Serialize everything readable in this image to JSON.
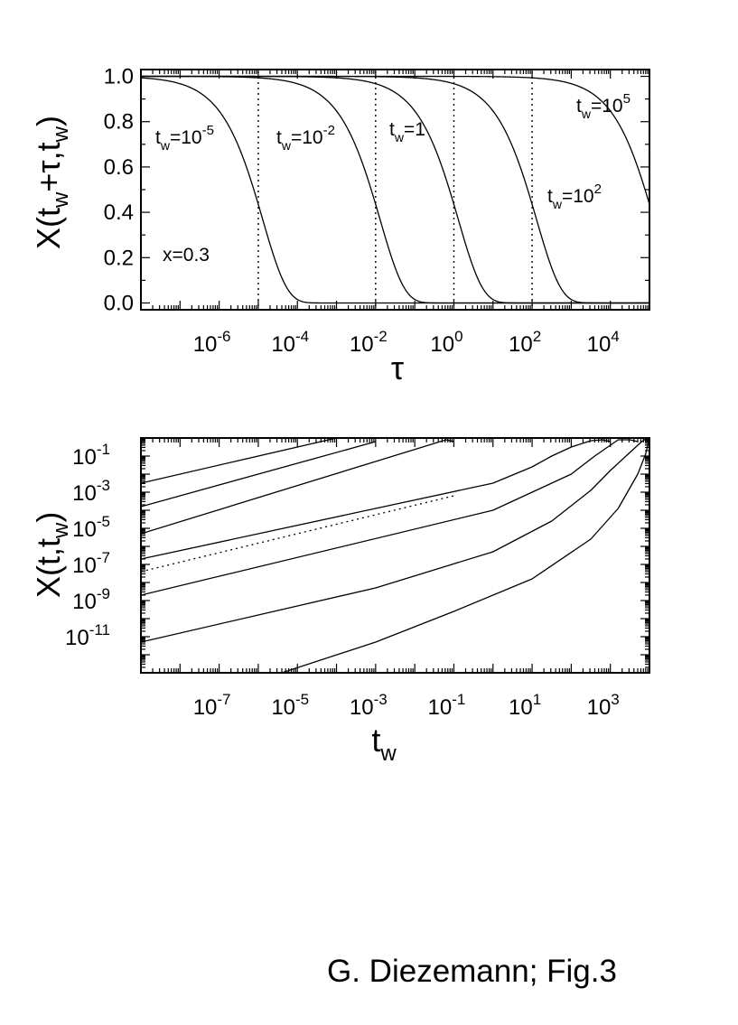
{
  "caption": "G. Diezemann; Fig.3",
  "chart_data": [
    {
      "type": "line",
      "xlabel": "τ",
      "ylabel": "X(t_w+τ,t_w)",
      "xscale": "log",
      "xlim": [
        1e-08,
        100000.0
      ],
      "ylim": [
        -0.03,
        1.03
      ],
      "x_ticks": [
        -6,
        -4,
        -2,
        0,
        2,
        4
      ],
      "y_ticks": [
        "0.0",
        "0.2",
        "0.4",
        "0.6",
        "0.8",
        "1.0"
      ],
      "grid": false,
      "annotation": "x=0.3",
      "series": [
        {
          "name": "t_w=10^-5",
          "label_base": "10",
          "label_exp": "-5",
          "t_w": 1e-05
        },
        {
          "name": "t_w=10^-2",
          "label_base": "10",
          "label_exp": "-2",
          "t_w": 0.01
        },
        {
          "name": "t_w=1",
          "label_base": "1",
          "label_exp": "",
          "t_w": 1
        },
        {
          "name": "t_w=10^2",
          "label_base": "10",
          "label_exp": "2",
          "t_w": 100
        },
        {
          "name": "t_w=10^5",
          "label_base": "10",
          "label_exp": "5",
          "t_w": 100000.0
        }
      ],
      "reference_lines_x": [
        1e-05,
        0.01,
        1,
        100
      ]
    },
    {
      "type": "line",
      "xlabel": "t_w",
      "ylabel": "X(t,t_w)",
      "xscale": "log",
      "yscale": "log",
      "xlim": [
        1e-09,
        10000.0
      ],
      "ylim": [
        1e-13,
        1
      ],
      "x_ticks": [
        -7,
        -5,
        -3,
        -1,
        1,
        3
      ],
      "y_ticks": [
        -11,
        -9,
        -7,
        -5,
        -3,
        -1
      ],
      "grid": false,
      "series": [
        {
          "x": [
            -9,
            -4
          ],
          "y": [
            -2.5,
            0
          ]
        },
        {
          "x": [
            -9,
            -3
          ],
          "y": [
            -3.8,
            -0.2
          ]
        },
        {
          "x": [
            -9,
            -1.2,
            -1
          ],
          "y": [
            -5.3,
            -0.1,
            -0.2
          ]
        },
        {
          "x": [
            -9,
            0,
            1,
            1.5,
            2,
            2.5,
            2.8,
            3
          ],
          "y": [
            -6.7,
            -2.5,
            -1.6,
            -1,
            -0.5,
            -0.15,
            -0.1,
            -0.2
          ]
        },
        {
          "x": [
            -9,
            0,
            2,
            2.6,
            3,
            3.2,
            3.5,
            3.7
          ],
          "y": [
            -8.7,
            -4,
            -2,
            -1,
            -0.4,
            -0.1,
            -0.1,
            -0.2
          ]
        },
        {
          "x": [
            -9,
            -3,
            0,
            1.5,
            2.5,
            3,
            3.5,
            3.8,
            3.95
          ],
          "y": [
            -11.3,
            -8.3,
            -6.3,
            -4.6,
            -2.9,
            -1.8,
            -0.8,
            -0.2,
            0
          ]
        },
        {
          "x": [
            -5.4,
            -3,
            -1,
            1,
            2.5,
            3.2,
            3.7,
            3.9,
            4
          ],
          "y": [
            -13,
            -11.3,
            -9.6,
            -7.8,
            -5.6,
            -3.9,
            -2,
            -0.9,
            0
          ]
        }
      ],
      "dotted_line": {
        "x": [
          -9,
          -1
        ],
        "y": [
          -7.4,
          -3.2
        ]
      }
    }
  ]
}
